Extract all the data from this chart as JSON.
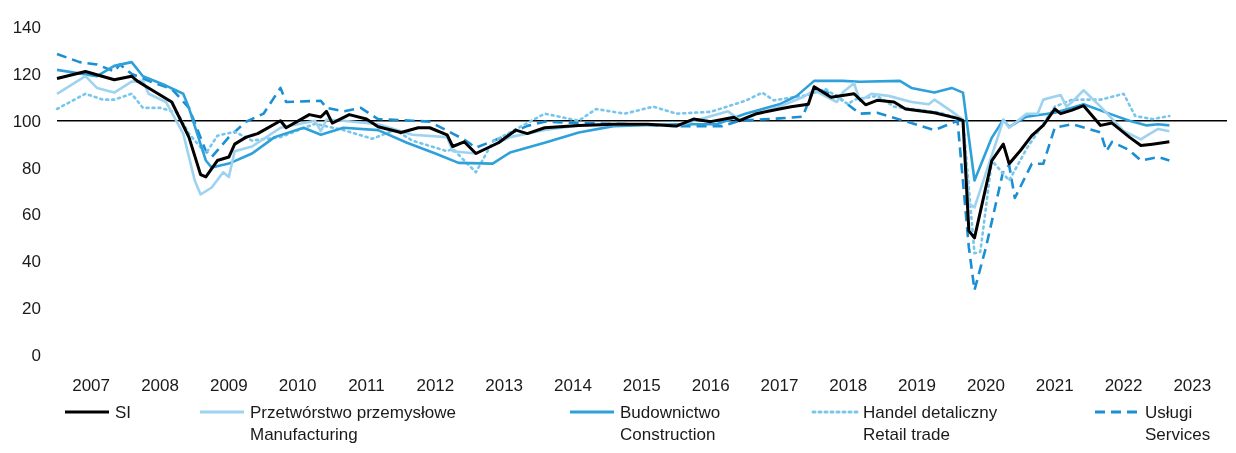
{
  "chart_data": {
    "type": "line",
    "xlim": [
      "2007-01",
      "2024-01"
    ],
    "xticks": [
      {
        "value": "2007-07",
        "label": "2007"
      },
      {
        "value": "2008-07",
        "label": "2008"
      },
      {
        "value": "2009-07",
        "label": "2009"
      },
      {
        "value": "2010-07",
        "label": "2010"
      },
      {
        "value": "2011-07",
        "label": "2011"
      },
      {
        "value": "2012-07",
        "label": "2012"
      },
      {
        "value": "2013-07",
        "label": "2013"
      },
      {
        "value": "2014-07",
        "label": "2014"
      },
      {
        "value": "2015-07",
        "label": "2015"
      },
      {
        "value": "2016-07",
        "label": "2016"
      },
      {
        "value": "2017-07",
        "label": "2017"
      },
      {
        "value": "2018-07",
        "label": "2018"
      },
      {
        "value": "2019-07",
        "label": "2019"
      },
      {
        "value": "2020-07",
        "label": "2020"
      },
      {
        "value": "2021-07",
        "label": "2021"
      },
      {
        "value": "2022-07",
        "label": "2022"
      },
      {
        "value": "2023-07",
        "label": "2023"
      }
    ],
    "ylim": [
      0,
      140
    ],
    "yticks": [
      0,
      20,
      40,
      60,
      80,
      100,
      120,
      140
    ],
    "ref_lines": [
      {
        "axis": "y",
        "value": 100,
        "color": "#000000"
      }
    ],
    "legend": "bottom",
    "series": [
      {
        "name": "SI",
        "color": "#000000",
        "line_style": "solid",
        "x": [
          "2007-01",
          "2007-06",
          "2007-11",
          "2008-02",
          "2008-03",
          "2008-05",
          "2008-09",
          "2008-12",
          "2009-02",
          "2009-03",
          "2009-05",
          "2009-07",
          "2009-08",
          "2009-10",
          "2009-12",
          "2010-04",
          "2010-05",
          "2010-09",
          "2010-11",
          "2010-12",
          "2011-01",
          "2011-04",
          "2011-07",
          "2011-09",
          "2012-01",
          "2012-04",
          "2012-06",
          "2012-09",
          "2012-10",
          "2012-12",
          "2013-02",
          "2013-06",
          "2013-09",
          "2013-11",
          "2014-02",
          "2014-08",
          "2015-02",
          "2015-08",
          "2016-01",
          "2016-04",
          "2016-07",
          "2016-11",
          "2016-12",
          "2017-03",
          "2017-07",
          "2017-09",
          "2017-12",
          "2018-01",
          "2018-04",
          "2018-08",
          "2018-10",
          "2018-12",
          "2019-03",
          "2019-05",
          "2019-10",
          "2020-02",
          "2020-03",
          "2020-04",
          "2020-05",
          "2020-08",
          "2020-10",
          "2020-11",
          "2021-01",
          "2021-03",
          "2021-05",
          "2021-07",
          "2021-08",
          "2021-10",
          "2021-12",
          "2022-03",
          "2022-05",
          "2022-08",
          "2022-10",
          "2022-12",
          "2023-03"
        ],
        "values": [
          118,
          121,
          117.5,
          119,
          117,
          114,
          108,
          93,
          77,
          76,
          83,
          84.5,
          90,
          93,
          94.5,
          100,
          97,
          102.6,
          101.6,
          104,
          99,
          102.6,
          100.7,
          97.4,
          95,
          97,
          97,
          94,
          89,
          91,
          86,
          90.6,
          96,
          94.5,
          97,
          98,
          98.5,
          98.5,
          97.7,
          100.7,
          99.6,
          101.5,
          100,
          103,
          105,
          106,
          107,
          114.5,
          110,
          111.5,
          106.8,
          108.7,
          108,
          105,
          103.4,
          101,
          100,
          53,
          50,
          83,
          90,
          81.6,
          87.4,
          93.6,
          98,
          105,
          103,
          104.5,
          106.4,
          98,
          99,
          93,
          89.4,
          90,
          91
        ]
      },
      {
        "name": "Przetwórstwo przemysłowe\nManufacturing",
        "color": "#9dd3f0",
        "line_style": "solid",
        "x": [
          "2007-01",
          "2007-06",
          "2007-08",
          "2007-11",
          "2008-02",
          "2008-04",
          "2008-05",
          "2008-08",
          "2008-11",
          "2009-01",
          "2009-02",
          "2009-04",
          "2009-06",
          "2009-07",
          "2009-08",
          "2009-11",
          "2010-04",
          "2010-10",
          "2010-11",
          "2010-12",
          "2011-03",
          "2011-09",
          "2012-03",
          "2012-09",
          "2012-10",
          "2013-02",
          "2013-08",
          "2014-02",
          "2014-08",
          "2015-08",
          "2016-01",
          "2016-10",
          "2016-12",
          "2017-07",
          "2017-11",
          "2018-01",
          "2018-05",
          "2018-06",
          "2018-08",
          "2018-09",
          "2018-11",
          "2019-02",
          "2019-06",
          "2019-09",
          "2019-10",
          "2020-01",
          "2020-03",
          "2020-04",
          "2020-05",
          "2020-09",
          "2020-10",
          "2020-11",
          "2021-02",
          "2021-04",
          "2021-05",
          "2021-08",
          "2021-09",
          "2021-10",
          "2021-12",
          "2022-03",
          "2022-07",
          "2022-10",
          "2022-11",
          "2023-01",
          "2023-03"
        ],
        "values": [
          111.5,
          119,
          114,
          112,
          116.7,
          117,
          111.5,
          108,
          94.5,
          74.5,
          68.5,
          71.5,
          78,
          76,
          87,
          89,
          97,
          100,
          95.5,
          100.5,
          100,
          98.5,
          94,
          93,
          87,
          86,
          93,
          96,
          98,
          98.5,
          97.7,
          104,
          100.4,
          106,
          110,
          113,
          108,
          112,
          116,
          108.5,
          111.5,
          110.6,
          108,
          107,
          109,
          104,
          100.4,
          64.7,
          63,
          92.8,
          100.4,
          97,
          103,
          103,
          109,
          111,
          106,
          108,
          113,
          106,
          95.7,
          92,
          93.6,
          96.5,
          95.5
        ]
      },
      {
        "name": "Budownictwo\nConstruction",
        "color": "#2ea0da",
        "line_style": "solid",
        "x": [
          "2007-01",
          "2007-08",
          "2007-11",
          "2008-02",
          "2008-04",
          "2008-08",
          "2008-11",
          "2008-12",
          "2009-03",
          "2009-04",
          "2009-07",
          "2009-11",
          "2010-03",
          "2010-08",
          "2010-11",
          "2011-03",
          "2011-09",
          "2012-02",
          "2012-07",
          "2012-11",
          "2013-05",
          "2013-08",
          "2014-02",
          "2014-08",
          "2015-02",
          "2016-01",
          "2016-08",
          "2017-01",
          "2017-07",
          "2017-10",
          "2018-01",
          "2018-06",
          "2018-09",
          "2019-04",
          "2019-06",
          "2019-10",
          "2020-01",
          "2020-03",
          "2020-05",
          "2020-08",
          "2020-10",
          "2020-11",
          "2021-02",
          "2021-07",
          "2021-10",
          "2021-12",
          "2022-05",
          "2022-08",
          "2022-11",
          "2023-01",
          "2023-03"
        ],
        "values": [
          121.7,
          119,
          123.4,
          125,
          119,
          115,
          111.5,
          105.5,
          83,
          80,
          81.7,
          86,
          93,
          97,
          94,
          97,
          96,
          90.6,
          86,
          82,
          81.7,
          86.4,
          90.6,
          95,
          97.7,
          98.5,
          98.5,
          103,
          107,
          110.6,
          117,
          117,
          116.6,
          117,
          114,
          112,
          114,
          112,
          74.5,
          92.8,
          100.4,
          97.4,
          101.7,
          103.4,
          105.5,
          107,
          102.6,
          100,
          98,
          98.5,
          98
        ]
      },
      {
        "name": "Handel detaliczny\nRetail trade",
        "color": "#79c6ec",
        "line_style": "dotted",
        "x": [
          "2007-01",
          "2007-06",
          "2007-09",
          "2007-11",
          "2008-02",
          "2008-04",
          "2008-07",
          "2008-10",
          "2008-12",
          "2009-03",
          "2009-05",
          "2009-08",
          "2009-11",
          "2010-04",
          "2010-10",
          "2011-03",
          "2011-08",
          "2011-12",
          "2012-03",
          "2012-09",
          "2012-10",
          "2013-02",
          "2013-05",
          "2013-08",
          "2014-02",
          "2014-08",
          "2014-11",
          "2015-04",
          "2015-09",
          "2016-01",
          "2016-07",
          "2017-01",
          "2017-04",
          "2017-06",
          "2017-12",
          "2018-03",
          "2018-07",
          "2018-08",
          "2018-12",
          "2019-03",
          "2019-11",
          "2020-03",
          "2020-05",
          "2020-06",
          "2020-08",
          "2020-11",
          "2021-02",
          "2021-07",
          "2021-10",
          "2022-03",
          "2022-07",
          "2022-09",
          "2022-12",
          "2023-03"
        ],
        "values": [
          105,
          111.5,
          109,
          109,
          111.5,
          105.5,
          105.5,
          103.4,
          94.5,
          86,
          93.6,
          95.3,
          91.5,
          93,
          98.7,
          96,
          92.3,
          96,
          91.5,
          87,
          88,
          78,
          91,
          95,
          103,
          100,
          105,
          103,
          106,
          103,
          103.8,
          108.5,
          112,
          108.7,
          111,
          113.6,
          107,
          109,
          110.6,
          106,
          103.4,
          100.4,
          43.4,
          44,
          83,
          74.5,
          88,
          106,
          109,
          109,
          111.5,
          102,
          100.7,
          102
        ]
      },
      {
        "name": "Usługi\nServices",
        "color": "#1a8fd3",
        "line_style": "dashed",
        "x": [
          "2007-01",
          "2007-05",
          "2007-08",
          "2007-11",
          "2007-12",
          "2008-02",
          "2008-05",
          "2008-09",
          "2008-12",
          "2009-03",
          "2009-04",
          "2009-07",
          "2009-10",
          "2010-01",
          "2010-04",
          "2010-05",
          "2010-11",
          "2010-12",
          "2011-03",
          "2011-06",
          "2011-09",
          "2012-03",
          "2012-06",
          "2012-10",
          "2012-12",
          "2013-02",
          "2013-06",
          "2013-11",
          "2014-02",
          "2014-08",
          "2015-05",
          "2016-01",
          "2016-09",
          "2016-12",
          "2017-07",
          "2017-11",
          "2018-01",
          "2018-05",
          "2018-09",
          "2018-12",
          "2019-06",
          "2019-10",
          "2020-02",
          "2020-04",
          "2020-05",
          "2020-07",
          "2020-10",
          "2020-11",
          "2020-12",
          "2021-03",
          "2021-05",
          "2021-07",
          "2021-10",
          "2022-03",
          "2022-04",
          "2022-05",
          "2022-08",
          "2022-10",
          "2023-01",
          "2023-03"
        ],
        "values": [
          128.5,
          125,
          124,
          121,
          124,
          120,
          117,
          113.6,
          105.5,
          87,
          84.5,
          93,
          99.6,
          103,
          114,
          108,
          108.5,
          105.5,
          104,
          105.5,
          100.7,
          100,
          99.6,
          94.5,
          92,
          88.5,
          92.3,
          97.8,
          99.6,
          99,
          98.5,
          97.7,
          97.7,
          100,
          101,
          101.7,
          114,
          110.6,
          103,
          103.4,
          99,
          96,
          100,
          46,
          27.7,
          46,
          78.7,
          81,
          67,
          81.6,
          81.6,
          97,
          98.5,
          95,
          87,
          91,
          87.4,
          83,
          84.5,
          83
        ]
      }
    ]
  }
}
